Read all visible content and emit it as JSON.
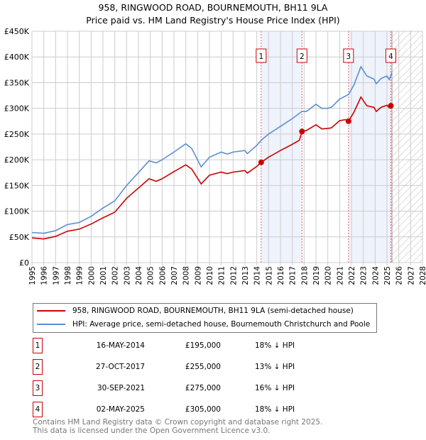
{
  "chart_data": {
    "type": "line",
    "title": "958, RINGWOOD ROAD, BOURNEMOUTH, BH11 9LA",
    "subtitle": "Price paid vs. HM Land Registry's House Price Index (HPI)",
    "xlim": [
      1995,
      2028
    ],
    "ylim": [
      0,
      450000
    ],
    "x_ticks": [
      "1995",
      "1996",
      "1997",
      "1998",
      "1999",
      "2000",
      "2001",
      "2002",
      "2003",
      "2004",
      "2005",
      "2006",
      "2007",
      "2008",
      "2009",
      "2010",
      "2011",
      "2012",
      "2013",
      "2014",
      "2015",
      "2016",
      "2017",
      "2018",
      "2019",
      "2020",
      "2021",
      "2022",
      "2023",
      "2024",
      "2025",
      "2026",
      "2027",
      "2028"
    ],
    "y_ticks": [
      {
        "v": 0,
        "label": "£0"
      },
      {
        "v": 50000,
        "label": "£50K"
      },
      {
        "v": 100000,
        "label": "£100K"
      },
      {
        "v": 150000,
        "label": "£150K"
      },
      {
        "v": 200000,
        "label": "£200K"
      },
      {
        "v": 250000,
        "label": "£250K"
      },
      {
        "v": 300000,
        "label": "£300K"
      },
      {
        "v": 350000,
        "label": "£350K"
      },
      {
        "v": 400000,
        "label": "£400K"
      },
      {
        "v": 450000,
        "label": "£450K"
      }
    ],
    "grid": true,
    "shaded_ranges": [
      [
        2014.37,
        2017.82
      ],
      [
        2021.75,
        2025.33
      ]
    ],
    "forecast_hatch_from": 2025.42,
    "series": [
      {
        "name": "958, RINGWOOD ROAD, BOURNEMOUTH, BH11 9LA (semi-detached house)",
        "color": "#cc0000",
        "x": [
          1995,
          1996,
          1997,
          1998,
          1999,
          2000,
          2001,
          2002,
          2003,
          2004,
          2004.9,
          2005.5,
          2006,
          2007,
          2008,
          2008.5,
          2009.3,
          2010,
          2011,
          2011.5,
          2012,
          2013,
          2013.2,
          2014,
          2014.37,
          2015,
          2016,
          2017,
          2017.6,
          2017.82,
          2018.2,
          2019,
          2019.5,
          2020,
          2020.3,
          2021,
          2021.5,
          2021.75,
          2022.2,
          2022.8,
          2023.3,
          2023.9,
          2024.1,
          2024.5,
          2025,
          2025.2,
          2025.33
        ],
        "y": [
          48000,
          46000,
          51000,
          61000,
          65000,
          75000,
          87000,
          98000,
          125000,
          145000,
          163000,
          158000,
          163000,
          177000,
          190000,
          182000,
          153000,
          170000,
          176000,
          173000,
          176000,
          179000,
          174000,
          187000,
          195000,
          205000,
          218000,
          230000,
          238000,
          255000,
          257000,
          268000,
          260000,
          261000,
          262000,
          276000,
          278000,
          275000,
          292000,
          322000,
          305000,
          302000,
          294000,
          302000,
          306000,
          301000,
          305000
        ]
      },
      {
        "name": "HPI: Average price, semi-detached house, Bournemouth Christchurch and Poole",
        "color": "#5b8fd0",
        "x": [
          1995,
          1996,
          1997,
          1998,
          1999,
          2000,
          2001,
          2002,
          2003,
          2004,
          2004.9,
          2005.5,
          2006,
          2007,
          2008,
          2008.5,
          2009.3,
          2010,
          2011,
          2011.5,
          2012,
          2013,
          2013.2,
          2014,
          2014.37,
          2015,
          2016,
          2017,
          2017.82,
          2018.2,
          2019,
          2019.5,
          2020,
          2020.3,
          2021,
          2021.75,
          2022.2,
          2022.8,
          2023.3,
          2023.9,
          2024.1,
          2024.5,
          2025,
          2025.2,
          2025.42
        ],
        "y": [
          58500,
          57000,
          62000,
          74000,
          78000,
          90000,
          106000,
          120000,
          150000,
          175000,
          198000,
          194000,
          200000,
          215000,
          231000,
          222000,
          186000,
          205000,
          215000,
          211000,
          215000,
          218000,
          212000,
          228000,
          238000,
          250000,
          265000,
          280000,
          294000,
          294000,
          308000,
          300000,
          300000,
          302000,
          318000,
          327000,
          345000,
          381000,
          363000,
          357000,
          348000,
          358000,
          363000,
          356000,
          370000
        ]
      }
    ],
    "sales": [
      {
        "label": "1",
        "x": 2014.37,
        "y": 195000,
        "date": "16-MAY-2014",
        "price": "£195,000",
        "hpi": "18% ↓ HPI"
      },
      {
        "label": "2",
        "x": 2017.82,
        "y": 255000,
        "date": "27-OCT-2017",
        "price": "£255,000",
        "hpi": "13% ↓ HPI"
      },
      {
        "label": "3",
        "x": 2021.75,
        "y": 275000,
        "date": "30-SEP-2021",
        "price": "£275,000",
        "hpi": "16% ↓ HPI"
      },
      {
        "label": "4",
        "x": 2025.33,
        "y": 305000,
        "date": "02-MAY-2025",
        "price": "£305,000",
        "hpi": "18% ↓ HPI"
      }
    ]
  },
  "legend": {
    "red": "958, RINGWOOD ROAD, BOURNEMOUTH, BH11 9LA (semi-detached house)",
    "blue": "HPI: Average price, semi-detached house, Bournemouth Christchurch and Poole"
  },
  "footer": {
    "line1": "Contains HM Land Registry data © Crown copyright and database right 2025.",
    "line2": "This data is licensed under the Open Government Licence v3.0."
  }
}
